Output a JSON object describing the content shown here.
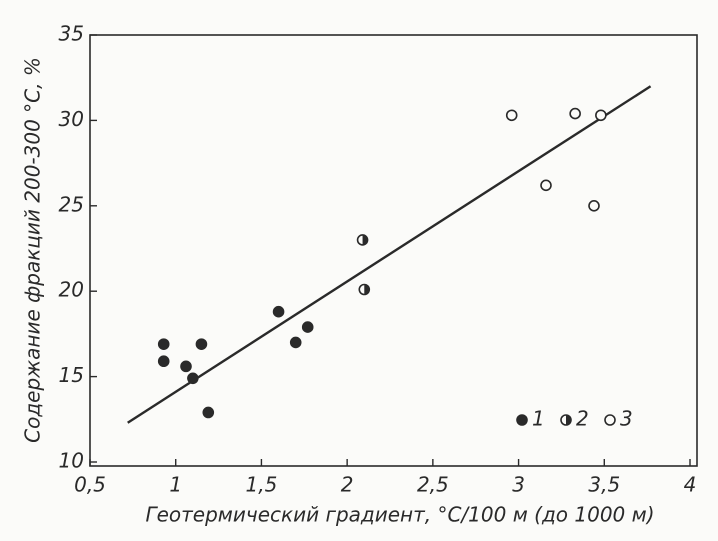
{
  "chart_data": {
    "type": "scatter",
    "x_label": "Геотермический градиент, °С/100 м (до 1000 м)",
    "y_label": "Содержание фракций 200-300 °С, %",
    "xlim": [
      0.5,
      4
    ],
    "ylim": [
      10,
      35
    ],
    "xticks": [
      {
        "value": 0.5,
        "label": "0,5"
      },
      1,
      {
        "value": 1.5,
        "label": "1,5"
      },
      2,
      {
        "value": 2.5,
        "label": "2,5"
      },
      3,
      {
        "value": 3.5,
        "label": "3,5"
      },
      4
    ],
    "yticks": [
      10,
      15,
      20,
      25,
      30,
      35
    ],
    "color": "#2a2a2a",
    "series": [
      {
        "name": "1",
        "marker": "filled",
        "x": [
          0.93,
          0.93,
          1.06,
          1.1,
          1.15,
          1.19,
          1.6,
          1.7,
          1.77
        ],
        "values": [
          16.9,
          15.9,
          15.6,
          14.9,
          16.9,
          12.9,
          18.8,
          17.0,
          17.9
        ]
      },
      {
        "name": "2",
        "marker": "half",
        "x": [
          2.09,
          2.1
        ],
        "values": [
          23.0,
          20.1
        ]
      },
      {
        "name": "3",
        "marker": "open",
        "x": [
          2.96,
          3.33,
          3.48,
          3.16,
          3.44
        ],
        "values": [
          30.3,
          30.4,
          30.3,
          26.2,
          25.0
        ]
      }
    ],
    "trend_line": {
      "x": [
        0.72,
        3.77
      ],
      "values": [
        12.3,
        32.0
      ]
    }
  }
}
